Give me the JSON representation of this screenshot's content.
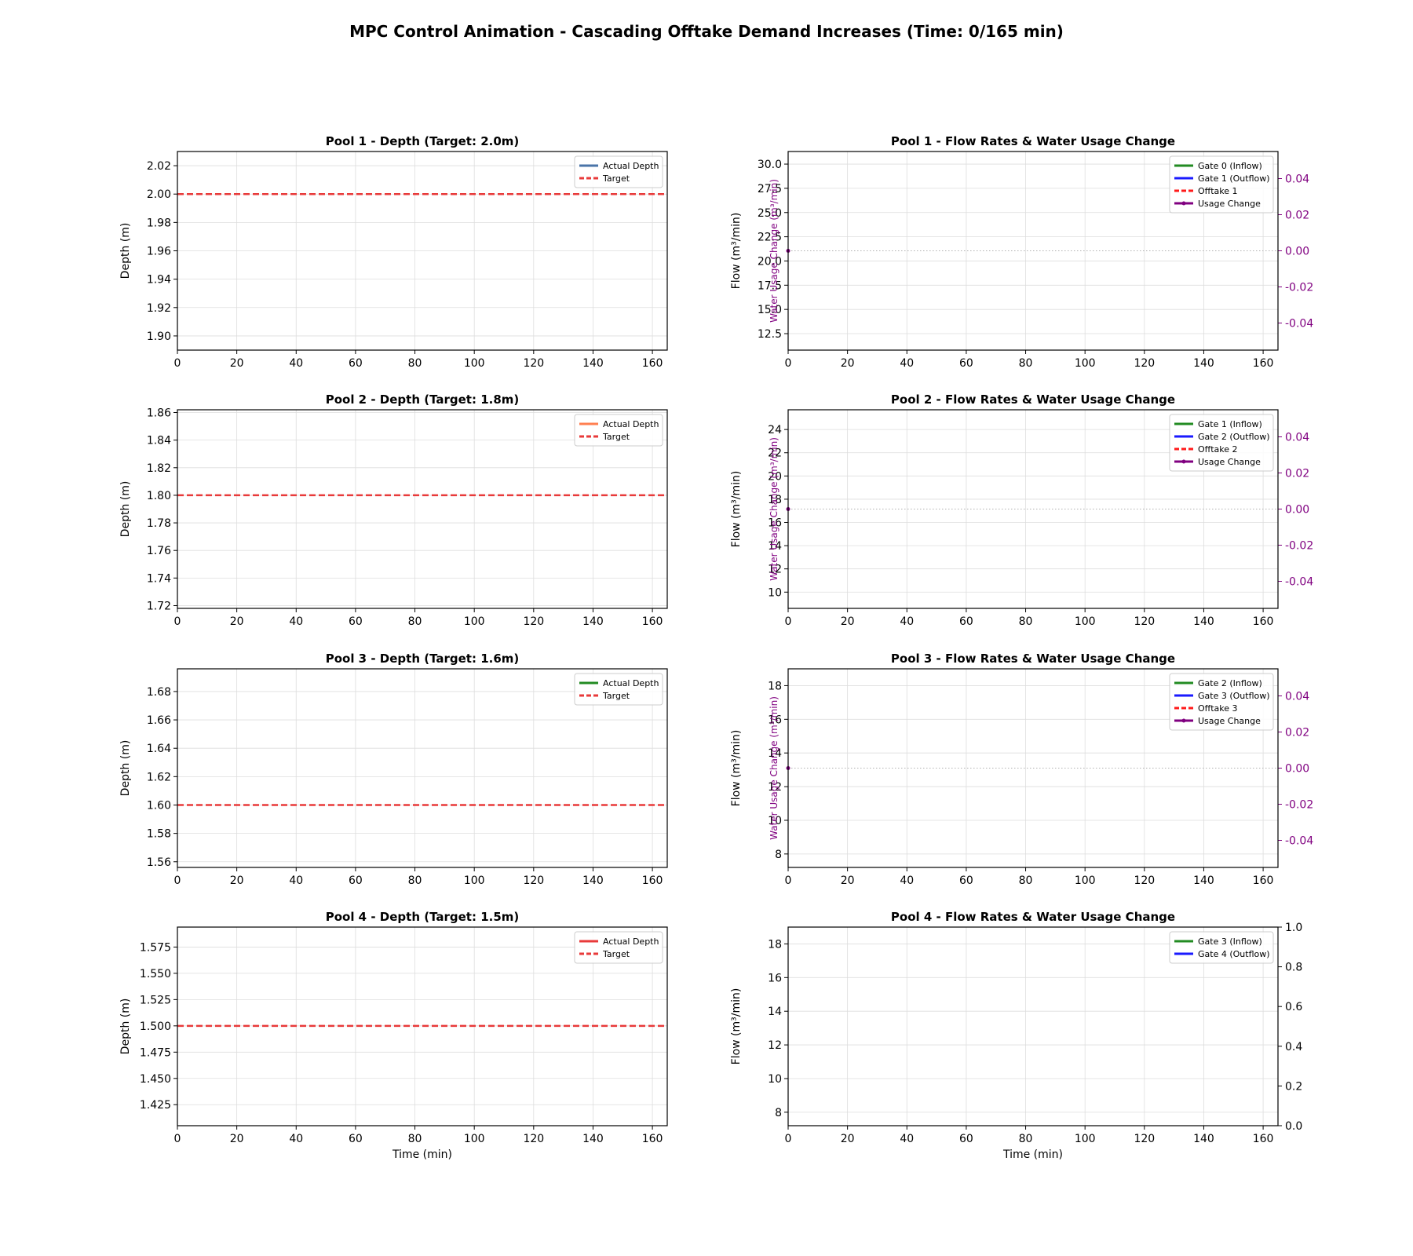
{
  "figure": {
    "title": "MPC Control Animation - Cascading Offtake Demand Increases (Time: 0/165 min)"
  },
  "colors": {
    "target": "#e83a3a",
    "inflow": "#228B22",
    "outflow": "#1a1aff",
    "offtake": "#ff1a1a",
    "usage": "#800080",
    "grid": "#dddddd"
  },
  "chart_data": [
    {
      "type": "line",
      "title": "Pool 1 - Depth (Target: 2.0m)",
      "xlabel": "",
      "ylabel": "Depth (m)",
      "xlim": [
        0,
        165
      ],
      "ylim": [
        1.89,
        2.03
      ],
      "xticks": [
        0,
        20,
        40,
        60,
        80,
        100,
        120,
        140,
        160
      ],
      "yticks": [
        1.9,
        1.92,
        1.94,
        1.96,
        1.98,
        2.0,
        2.02
      ],
      "ytick_decimals": 2,
      "grid": true,
      "legend_position": "upper-right",
      "series": [
        {
          "name": "Actual Depth",
          "color": "#4a74a8",
          "style": "solid",
          "x": [],
          "y": []
        },
        {
          "name": "Target",
          "color": "#e83a3a",
          "style": "dashed",
          "x": [
            0,
            165
          ],
          "y": [
            2.0,
            2.0
          ]
        }
      ]
    },
    {
      "type": "line",
      "title": "Pool 1 - Flow Rates & Water Usage Change",
      "xlabel": "",
      "ylabel": "Flow (m³/min)",
      "xlim": [
        0,
        165
      ],
      "ylim": [
        10.8,
        31.3
      ],
      "xticks": [
        0,
        20,
        40,
        60,
        80,
        100,
        120,
        140,
        160
      ],
      "yticks": [
        12.5,
        15.0,
        17.5,
        20.0,
        22.5,
        25.0,
        27.5,
        30.0
      ],
      "ytick_decimals": 1,
      "grid": true,
      "legend_position": "upper-right",
      "y2label": "Water Usage Change (m³/min)",
      "y2lim": [
        -0.055,
        0.055
      ],
      "y2ticks": [
        -0.04,
        -0.02,
        0.0,
        0.02,
        0.04
      ],
      "y2tick_decimals": 2,
      "y2_color": "#800080",
      "series": [
        {
          "name": "Gate 0 (Inflow)",
          "color": "#228B22",
          "style": "solid",
          "x": [],
          "y": []
        },
        {
          "name": "Gate 1 (Outflow)",
          "color": "#1a1aff",
          "style": "solid",
          "x": [],
          "y": []
        },
        {
          "name": "Offtake 1",
          "color": "#ff1a1a",
          "style": "dashed",
          "x": [],
          "y": []
        },
        {
          "name": "Usage Change",
          "color": "#800080",
          "style": "marker-line",
          "axis": "y2",
          "x": [
            0
          ],
          "y": [
            0.0
          ]
        }
      ],
      "zero_line": true
    },
    {
      "type": "line",
      "title": "Pool 2 - Depth (Target: 1.8m)",
      "xlabel": "",
      "ylabel": "Depth (m)",
      "xlim": [
        0,
        165
      ],
      "ylim": [
        1.718,
        1.862
      ],
      "xticks": [
        0,
        20,
        40,
        60,
        80,
        100,
        120,
        140,
        160
      ],
      "yticks": [
        1.72,
        1.74,
        1.76,
        1.78,
        1.8,
        1.82,
        1.84,
        1.86
      ],
      "ytick_decimals": 2,
      "grid": true,
      "legend_position": "upper-right",
      "series": [
        {
          "name": "Actual Depth",
          "color": "#ff7f50",
          "style": "solid",
          "x": [],
          "y": []
        },
        {
          "name": "Target",
          "color": "#e83a3a",
          "style": "dashed",
          "x": [
            0,
            165
          ],
          "y": [
            1.8,
            1.8
          ]
        }
      ]
    },
    {
      "type": "line",
      "title": "Pool 2 - Flow Rates & Water Usage Change",
      "xlabel": "",
      "ylabel": "Flow (m³/min)",
      "xlim": [
        0,
        165
      ],
      "ylim": [
        8.6,
        25.7
      ],
      "xticks": [
        0,
        20,
        40,
        60,
        80,
        100,
        120,
        140,
        160
      ],
      "yticks": [
        10,
        12,
        14,
        16,
        18,
        20,
        22,
        24
      ],
      "ytick_decimals": 0,
      "grid": true,
      "legend_position": "upper-right",
      "y2label": "Water Usage Change (m³/min)",
      "y2lim": [
        -0.055,
        0.055
      ],
      "y2ticks": [
        -0.04,
        -0.02,
        0.0,
        0.02,
        0.04
      ],
      "y2tick_decimals": 2,
      "y2_color": "#800080",
      "series": [
        {
          "name": "Gate 1 (Inflow)",
          "color": "#228B22",
          "style": "solid",
          "x": [],
          "y": []
        },
        {
          "name": "Gate 2 (Outflow)",
          "color": "#1a1aff",
          "style": "solid",
          "x": [],
          "y": []
        },
        {
          "name": "Offtake 2",
          "color": "#ff1a1a",
          "style": "dashed",
          "x": [],
          "y": []
        },
        {
          "name": "Usage Change",
          "color": "#800080",
          "style": "marker-line",
          "axis": "y2",
          "x": [
            0
          ],
          "y": [
            0.0
          ]
        }
      ],
      "zero_line": true
    },
    {
      "type": "line",
      "title": "Pool 3 - Depth (Target: 1.6m)",
      "xlabel": "",
      "ylabel": "Depth (m)",
      "xlim": [
        0,
        165
      ],
      "ylim": [
        1.556,
        1.696
      ],
      "xticks": [
        0,
        20,
        40,
        60,
        80,
        100,
        120,
        140,
        160
      ],
      "yticks": [
        1.56,
        1.58,
        1.6,
        1.62,
        1.64,
        1.66,
        1.68
      ],
      "ytick_decimals": 2,
      "grid": true,
      "legend_position": "upper-right",
      "series": [
        {
          "name": "Actual Depth",
          "color": "#228B22",
          "style": "solid",
          "x": [],
          "y": []
        },
        {
          "name": "Target",
          "color": "#e83a3a",
          "style": "dashed",
          "x": [
            0,
            165
          ],
          "y": [
            1.6,
            1.6
          ]
        }
      ]
    },
    {
      "type": "line",
      "title": "Pool 3 - Flow Rates & Water Usage Change",
      "xlabel": "",
      "ylabel": "Flow (m³/min)",
      "xlim": [
        0,
        165
      ],
      "ylim": [
        7.2,
        19.0
      ],
      "xticks": [
        0,
        20,
        40,
        60,
        80,
        100,
        120,
        140,
        160
      ],
      "yticks": [
        8,
        10,
        12,
        14,
        16,
        18
      ],
      "ytick_decimals": 0,
      "grid": true,
      "legend_position": "upper-right",
      "y2label": "Water Usage Change (m³/min)",
      "y2lim": [
        -0.055,
        0.055
      ],
      "y2ticks": [
        -0.04,
        -0.02,
        0.0,
        0.02,
        0.04
      ],
      "y2tick_decimals": 2,
      "y2_color": "#800080",
      "series": [
        {
          "name": "Gate 2 (Inflow)",
          "color": "#228B22",
          "style": "solid",
          "x": [],
          "y": []
        },
        {
          "name": "Gate 3 (Outflow)",
          "color": "#1a1aff",
          "style": "solid",
          "x": [],
          "y": []
        },
        {
          "name": "Offtake 3",
          "color": "#ff1a1a",
          "style": "dashed",
          "x": [],
          "y": []
        },
        {
          "name": "Usage Change",
          "color": "#800080",
          "style": "marker-line",
          "axis": "y2",
          "x": [
            0
          ],
          "y": [
            0.0
          ]
        }
      ],
      "zero_line": true
    },
    {
      "type": "line",
      "title": "Pool 4 - Depth (Target: 1.5m)",
      "xlabel": "Time (min)",
      "ylabel": "Depth (m)",
      "xlim": [
        0,
        165
      ],
      "ylim": [
        1.405,
        1.594
      ],
      "xticks": [
        0,
        20,
        40,
        60,
        80,
        100,
        120,
        140,
        160
      ],
      "yticks": [
        1.425,
        1.45,
        1.475,
        1.5,
        1.525,
        1.55,
        1.575
      ],
      "ytick_decimals": 3,
      "grid": true,
      "legend_position": "upper-right",
      "series": [
        {
          "name": "Actual Depth",
          "color": "#e83a3a",
          "style": "solid",
          "x": [],
          "y": []
        },
        {
          "name": "Target",
          "color": "#e83a3a",
          "style": "dashed",
          "x": [
            0,
            165
          ],
          "y": [
            1.5,
            1.5
          ]
        }
      ]
    },
    {
      "type": "line",
      "title": "Pool 4 - Flow Rates & Water Usage Change",
      "xlabel": "Time (min)",
      "ylabel": "Flow (m³/min)",
      "xlim": [
        0,
        165
      ],
      "ylim": [
        7.2,
        19.0
      ],
      "xticks": [
        0,
        20,
        40,
        60,
        80,
        100,
        120,
        140,
        160
      ],
      "yticks": [
        8,
        10,
        12,
        14,
        16,
        18
      ],
      "ytick_decimals": 0,
      "grid": true,
      "legend_position": "upper-right",
      "y2label": "",
      "y2lim": [
        0,
        1
      ],
      "y2ticks": [
        0.0,
        0.2,
        0.4,
        0.6,
        0.8,
        1.0
      ],
      "y2tick_decimals": 1,
      "y2_color": "#000000",
      "series": [
        {
          "name": "Gate 3 (Inflow)",
          "color": "#228B22",
          "style": "solid",
          "x": [],
          "y": []
        },
        {
          "name": "Gate 4 (Outflow)",
          "color": "#1a1aff",
          "style": "solid",
          "x": [],
          "y": []
        }
      ],
      "zero_line": false
    }
  ]
}
